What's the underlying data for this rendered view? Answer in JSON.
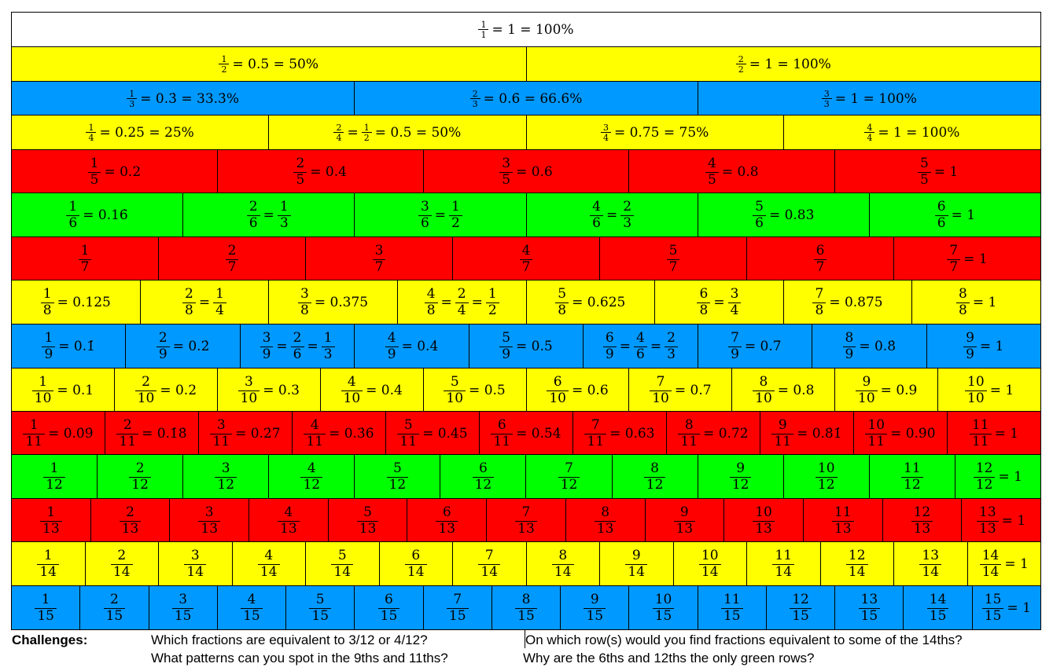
{
  "colors": {
    "white": "#ffffff",
    "yellow": "#ffff00",
    "blue": "#0099ff",
    "red": "#ff0000",
    "green": "#00ff00"
  },
  "rows": [
    {
      "color": "white",
      "small": true,
      "cells": [
        {
          "n": "1",
          "d": "1",
          "rest": "= 1 = 100%"
        }
      ]
    },
    {
      "color": "yellow",
      "small": true,
      "cells": [
        {
          "n": "1",
          "d": "2",
          "rest": "= 0.5 = 50%"
        },
        {
          "n": "2",
          "d": "2",
          "rest": "= 1 = 100%"
        }
      ]
    },
    {
      "color": "blue",
      "small": true,
      "cells": [
        {
          "n": "1",
          "d": "3",
          "rest": "= 0.3̇ = 33.3̇%"
        },
        {
          "n": "2",
          "d": "3",
          "rest": "= 0.6̇ = 66.6̇%"
        },
        {
          "n": "3",
          "d": "3",
          "rest": "= 1 = 100%"
        }
      ]
    },
    {
      "color": "yellow",
      "small": true,
      "cells": [
        {
          "n": "1",
          "d": "4",
          "rest": "= 0.25 = 25%"
        },
        {
          "n": "2",
          "d": "4",
          "eq": [
            {
              "n": "1",
              "d": "2"
            }
          ],
          "rest": "= 0.5 = 50%"
        },
        {
          "n": "3",
          "d": "4",
          "rest": "= 0.75 = 75%"
        },
        {
          "n": "4",
          "d": "4",
          "rest": "= 1 = 100%"
        }
      ]
    },
    {
      "color": "red",
      "cells": [
        {
          "n": "1",
          "d": "5",
          "rest": "= 0.2"
        },
        {
          "n": "2",
          "d": "5",
          "rest": "= 0.4"
        },
        {
          "n": "3",
          "d": "5",
          "rest": "= 0.6"
        },
        {
          "n": "4",
          "d": "5",
          "rest": "= 0.8"
        },
        {
          "n": "5",
          "d": "5",
          "rest": "= 1"
        }
      ]
    },
    {
      "color": "green",
      "cells": [
        {
          "n": "1",
          "d": "6",
          "rest": "= 0.16̇"
        },
        {
          "n": "2",
          "d": "6",
          "eq": [
            {
              "n": "1",
              "d": "3"
            }
          ]
        },
        {
          "n": "3",
          "d": "6",
          "eq": [
            {
              "n": "1",
              "d": "2"
            }
          ]
        },
        {
          "n": "4",
          "d": "6",
          "eq": [
            {
              "n": "2",
              "d": "3"
            }
          ]
        },
        {
          "n": "5",
          "d": "6",
          "rest": "= 0.83̇"
        },
        {
          "n": "6",
          "d": "6",
          "rest": "= 1"
        }
      ]
    },
    {
      "color": "red",
      "cells": [
        {
          "n": "1",
          "d": "7"
        },
        {
          "n": "2",
          "d": "7"
        },
        {
          "n": "3",
          "d": "7"
        },
        {
          "n": "4",
          "d": "7"
        },
        {
          "n": "5",
          "d": "7"
        },
        {
          "n": "6",
          "d": "7"
        },
        {
          "n": "7",
          "d": "7",
          "rest": "= 1"
        }
      ]
    },
    {
      "color": "yellow",
      "cells": [
        {
          "n": "1",
          "d": "8",
          "rest": "= 0.125"
        },
        {
          "n": "2",
          "d": "8",
          "eq": [
            {
              "n": "1",
              "d": "4"
            }
          ]
        },
        {
          "n": "3",
          "d": "8",
          "rest": "= 0.375"
        },
        {
          "n": "4",
          "d": "8",
          "eq": [
            {
              "n": "2",
              "d": "4"
            },
            {
              "n": "1",
              "d": "2"
            }
          ]
        },
        {
          "n": "5",
          "d": "8",
          "rest": "= 0.625"
        },
        {
          "n": "6",
          "d": "8",
          "eq": [
            {
              "n": "3",
              "d": "4"
            }
          ]
        },
        {
          "n": "7",
          "d": "8",
          "rest": "= 0.875"
        },
        {
          "n": "8",
          "d": "8",
          "rest": "= 1"
        }
      ]
    },
    {
      "color": "blue",
      "cells": [
        {
          "n": "1",
          "d": "9",
          "rest": "= 0.1̇"
        },
        {
          "n": "2",
          "d": "9",
          "rest": "= 0.2̇"
        },
        {
          "n": "3",
          "d": "9",
          "eq": [
            {
              "n": "2",
              "d": "6"
            },
            {
              "n": "1",
              "d": "3"
            }
          ]
        },
        {
          "n": "4",
          "d": "9",
          "rest": "= 0.4̇"
        },
        {
          "n": "5",
          "d": "9",
          "rest": "= 0.5̇"
        },
        {
          "n": "6",
          "d": "9",
          "eq": [
            {
              "n": "4",
              "d": "6"
            },
            {
              "n": "2",
              "d": "3"
            }
          ]
        },
        {
          "n": "7",
          "d": "9",
          "rest": "= 0.7̇"
        },
        {
          "n": "8",
          "d": "9",
          "rest": "= 0.8̇"
        },
        {
          "n": "9",
          "d": "9",
          "rest": "= 1"
        }
      ]
    },
    {
      "color": "yellow",
      "cells": [
        {
          "n": "1",
          "d": "10",
          "rest": "= 0.1"
        },
        {
          "n": "2",
          "d": "10",
          "rest": "= 0.2"
        },
        {
          "n": "3",
          "d": "10",
          "rest": "= 0.3"
        },
        {
          "n": "4",
          "d": "10",
          "rest": "= 0.4"
        },
        {
          "n": "5",
          "d": "10",
          "rest": "= 0.5"
        },
        {
          "n": "6",
          "d": "10",
          "rest": "= 0.6"
        },
        {
          "n": "7",
          "d": "10",
          "rest": "= 0.7"
        },
        {
          "n": "8",
          "d": "10",
          "rest": "= 0.8"
        },
        {
          "n": "9",
          "d": "10",
          "rest": "= 0.9"
        },
        {
          "n": "10",
          "d": "10",
          "rest": "= 1"
        }
      ]
    },
    {
      "color": "red",
      "cells": [
        {
          "n": "1",
          "d": "11",
          "rest": "= 0.0̇9̇"
        },
        {
          "n": "2",
          "d": "11",
          "rest": "= 0.1̇8̇"
        },
        {
          "n": "3",
          "d": "11",
          "rest": "= 0.2̇7̇"
        },
        {
          "n": "4",
          "d": "11",
          "rest": "= 0.3̇6̇"
        },
        {
          "n": "5",
          "d": "11",
          "rest": "= 0.4̇5̇"
        },
        {
          "n": "6",
          "d": "11",
          "rest": "= 0.5̇4̇"
        },
        {
          "n": "7",
          "d": "11",
          "rest": "= 0.6̇3̇"
        },
        {
          "n": "8",
          "d": "11",
          "rest": "= 0.7̇2̇"
        },
        {
          "n": "9",
          "d": "11",
          "rest": "= 0.8̇1̇"
        },
        {
          "n": "10",
          "d": "11",
          "rest": "= 0.9̇0̇"
        },
        {
          "n": "11",
          "d": "11",
          "rest": "= 1"
        }
      ]
    },
    {
      "color": "green",
      "cells": [
        {
          "n": "1",
          "d": "12"
        },
        {
          "n": "2",
          "d": "12"
        },
        {
          "n": "3",
          "d": "12"
        },
        {
          "n": "4",
          "d": "12"
        },
        {
          "n": "5",
          "d": "12"
        },
        {
          "n": "6",
          "d": "12"
        },
        {
          "n": "7",
          "d": "12"
        },
        {
          "n": "8",
          "d": "12"
        },
        {
          "n": "9",
          "d": "12"
        },
        {
          "n": "10",
          "d": "12"
        },
        {
          "n": "11",
          "d": "12"
        },
        {
          "n": "12",
          "d": "12",
          "rest": "= 1"
        }
      ]
    },
    {
      "color": "red",
      "cells": [
        {
          "n": "1",
          "d": "13"
        },
        {
          "n": "2",
          "d": "13"
        },
        {
          "n": "3",
          "d": "13"
        },
        {
          "n": "4",
          "d": "13"
        },
        {
          "n": "5",
          "d": "13"
        },
        {
          "n": "6",
          "d": "13"
        },
        {
          "n": "7",
          "d": "13"
        },
        {
          "n": "8",
          "d": "13"
        },
        {
          "n": "9",
          "d": "13"
        },
        {
          "n": "10",
          "d": "13"
        },
        {
          "n": "11",
          "d": "13"
        },
        {
          "n": "12",
          "d": "13"
        },
        {
          "n": "13",
          "d": "13",
          "rest": "= 1"
        }
      ]
    },
    {
      "color": "yellow",
      "cells": [
        {
          "n": "1",
          "d": "14"
        },
        {
          "n": "2",
          "d": "14"
        },
        {
          "n": "3",
          "d": "14"
        },
        {
          "n": "4",
          "d": "14"
        },
        {
          "n": "5",
          "d": "14"
        },
        {
          "n": "6",
          "d": "14"
        },
        {
          "n": "7",
          "d": "14"
        },
        {
          "n": "8",
          "d": "14"
        },
        {
          "n": "9",
          "d": "14"
        },
        {
          "n": "10",
          "d": "14"
        },
        {
          "n": "11",
          "d": "14"
        },
        {
          "n": "12",
          "d": "14"
        },
        {
          "n": "13",
          "d": "14"
        },
        {
          "n": "14",
          "d": "14",
          "rest": "= 1"
        }
      ]
    },
    {
      "color": "blue",
      "cells": [
        {
          "n": "1",
          "d": "15"
        },
        {
          "n": "2",
          "d": "15"
        },
        {
          "n": "3",
          "d": "15"
        },
        {
          "n": "4",
          "d": "15"
        },
        {
          "n": "5",
          "d": "15"
        },
        {
          "n": "6",
          "d": "15"
        },
        {
          "n": "7",
          "d": "15"
        },
        {
          "n": "8",
          "d": "15"
        },
        {
          "n": "9",
          "d": "15"
        },
        {
          "n": "10",
          "d": "15"
        },
        {
          "n": "11",
          "d": "15"
        },
        {
          "n": "12",
          "d": "15"
        },
        {
          "n": "13",
          "d": "15"
        },
        {
          "n": "14",
          "d": "15"
        },
        {
          "n": "15",
          "d": "15",
          "rest": "= 1"
        }
      ]
    }
  ],
  "challenges": {
    "label": "Challenges:",
    "q1": "Which fractions are equivalent to 3/12 or 4/12?",
    "q2": "On which row(s) would you find fractions equivalent to some of the 14ths?",
    "q3": "What patterns can you spot in the 9ths and 11ths?",
    "q4": "Why are the 6ths and 12ths the only green rows?"
  }
}
